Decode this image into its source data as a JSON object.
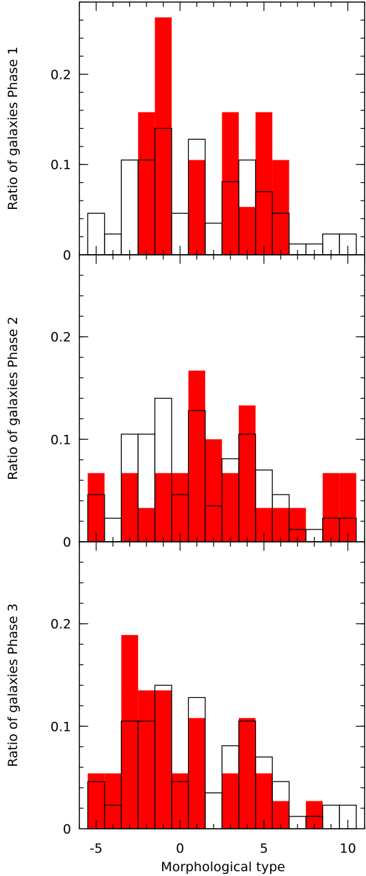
{
  "chart_data": {
    "type": "bar",
    "layout": "three vertically stacked panels sharing one x axis",
    "xlabel": "Morphological type",
    "xlim": [
      -6,
      11
    ],
    "x_ticks": [
      -5,
      0,
      5,
      10
    ],
    "x_tick_labels": [
      "-5",
      "0",
      "5",
      "10"
    ],
    "bin_centers": [
      -5,
      -4,
      -3,
      -2,
      -1,
      0,
      1,
      2,
      3,
      4,
      5,
      6,
      7,
      8,
      9,
      10
    ],
    "colors": {
      "filled": "#ff0000",
      "outline": "#000000"
    },
    "panels": [
      {
        "ylabel": "Ratio of galaxies Phase 1",
        "ylim": [
          0,
          0.28
        ],
        "y_ticks": [
          0,
          0.1,
          0.2
        ],
        "y_tick_labels": [
          "0",
          "0.1",
          "0.2"
        ],
        "filled_values": [
          0,
          0,
          0,
          0.158,
          0.263,
          0,
          0.105,
          0,
          0.158,
          0.053,
          0.158,
          0.105,
          0,
          0,
          0,
          0
        ],
        "outline_values": [
          0.046,
          0.023,
          0.105,
          0.105,
          0.14,
          0.046,
          0.128,
          0.035,
          0.081,
          0.105,
          0.07,
          0.046,
          0.012,
          0.012,
          0.023,
          0.023
        ]
      },
      {
        "ylabel": "Ratio of galaxies Phase 2",
        "ylim": [
          0,
          0.28
        ],
        "y_ticks": [
          0,
          0.1,
          0.2
        ],
        "y_tick_labels": [
          "0",
          "0.1",
          "0.2"
        ],
        "filled_values": [
          0.067,
          0,
          0.067,
          0.033,
          0.067,
          0.067,
          0.167,
          0.1,
          0.067,
          0.133,
          0.033,
          0.033,
          0.033,
          0,
          0.067,
          0.067
        ],
        "outline_values": [
          0.046,
          0.023,
          0.105,
          0.105,
          0.14,
          0.046,
          0.128,
          0.035,
          0.081,
          0.105,
          0.07,
          0.046,
          0.012,
          0.012,
          0.023,
          0.023
        ]
      },
      {
        "ylabel": "Ratio of galaxies Phase 3",
        "ylim": [
          0,
          0.28
        ],
        "y_ticks": [
          0,
          0.1,
          0.2
        ],
        "y_tick_labels": [
          "0",
          "0.1",
          "0.2"
        ],
        "filled_values": [
          0.054,
          0.054,
          0.189,
          0.135,
          0.135,
          0.054,
          0.108,
          0,
          0.054,
          0.108,
          0.054,
          0.027,
          0,
          0.027,
          0,
          0
        ],
        "outline_values": [
          0.046,
          0.023,
          0.105,
          0.105,
          0.14,
          0.046,
          0.128,
          0.035,
          0.081,
          0.105,
          0.07,
          0.046,
          0.012,
          0.012,
          0.023,
          0.023
        ]
      }
    ]
  }
}
